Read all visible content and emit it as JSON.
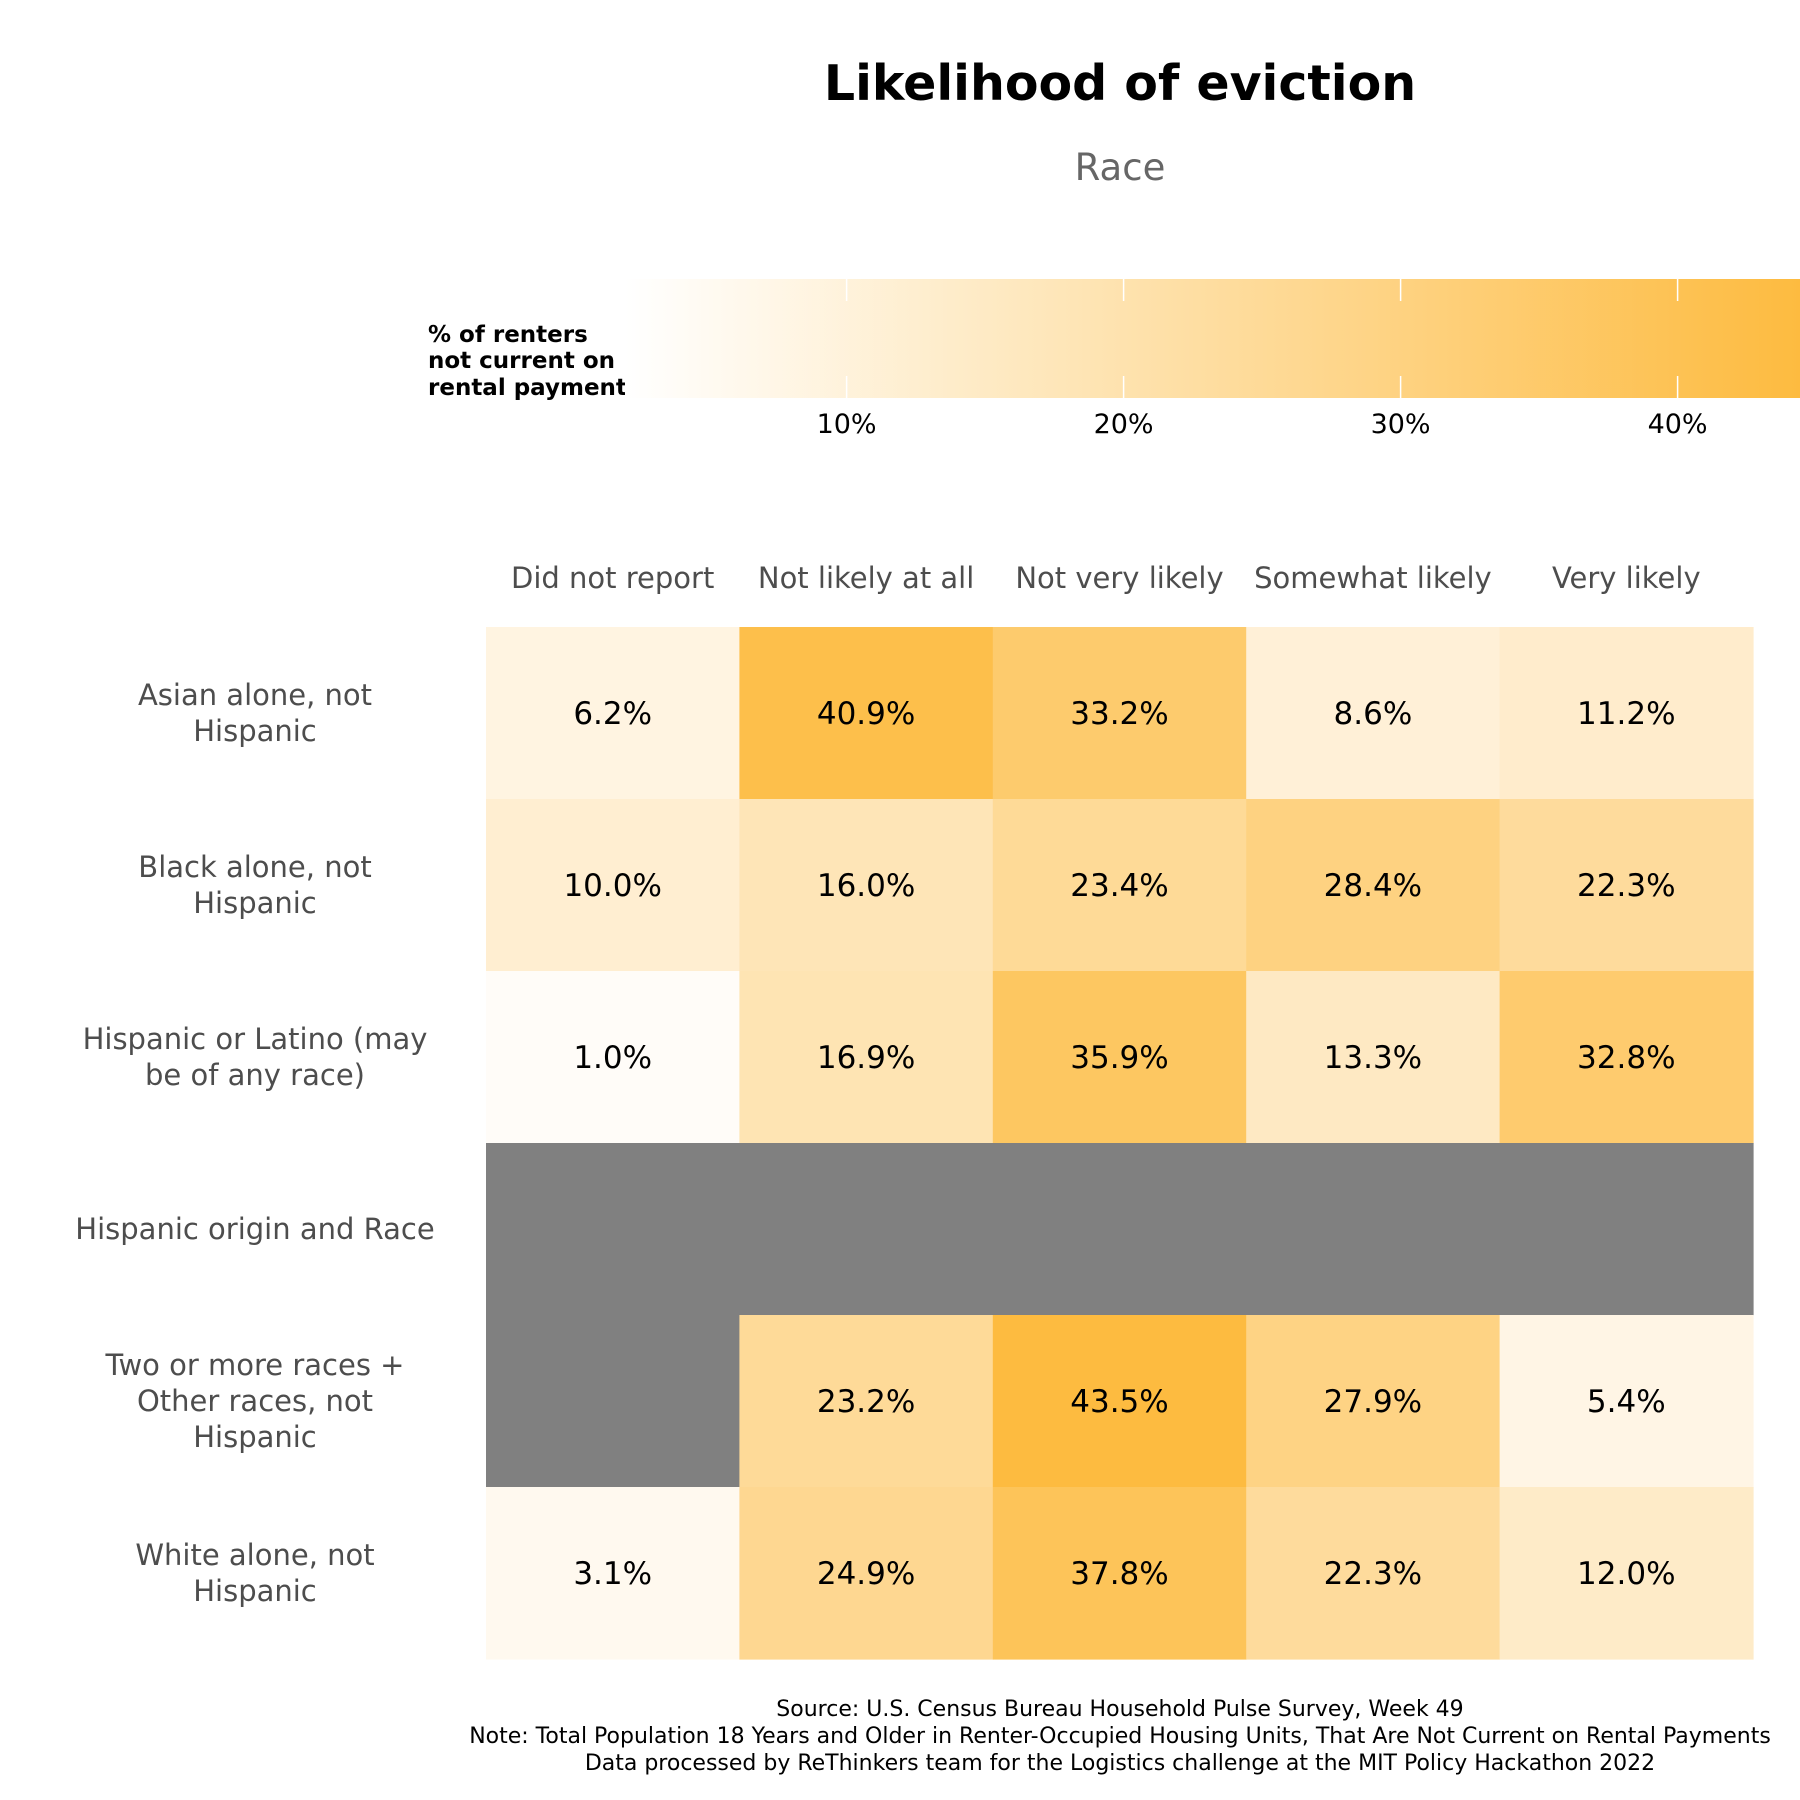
{
  "chart_data": {
    "type": "heatmap",
    "title": "Likelihood of eviction",
    "subtitle": "Race",
    "legend": {
      "title_lines": [
        "% of renters",
        "not current on",
        "rental payments"
      ],
      "ticks": [
        {
          "value": 10,
          "label": "10%"
        },
        {
          "value": 20,
          "label": "20%"
        },
        {
          "value": 30,
          "label": "30%"
        },
        {
          "value": 40,
          "label": "40%"
        }
      ],
      "range": [
        1.0,
        43.5
      ],
      "placement": "top"
    },
    "columns": [
      "Did not report",
      "Not likely at all",
      "Not very likely",
      "Somewhat likely",
      "Very likely"
    ],
    "rows": [
      {
        "label_lines": [
          "Asian alone, not",
          "Hispanic"
        ],
        "values": [
          6.2,
          40.9,
          33.2,
          8.6,
          11.2
        ],
        "labels": [
          "6.2%",
          "40.9%",
          "33.2%",
          "8.6%",
          "11.2%"
        ]
      },
      {
        "label_lines": [
          "Black alone, not",
          "Hispanic"
        ],
        "values": [
          10.0,
          16.0,
          23.4,
          28.4,
          22.3
        ],
        "labels": [
          "10.0%",
          "16.0%",
          "23.4%",
          "28.4%",
          "22.3%"
        ]
      },
      {
        "label_lines": [
          "Hispanic or Latino (may",
          "be of any race)"
        ],
        "values": [
          1.0,
          16.9,
          35.9,
          13.3,
          32.8
        ],
        "labels": [
          "1.0%",
          "16.9%",
          "35.9%",
          "13.3%",
          "32.8%"
        ]
      },
      {
        "label_lines": [
          "Hispanic origin and Race"
        ],
        "values": [
          null,
          null,
          null,
          null,
          null
        ],
        "labels": [
          "",
          "",
          "",
          "",
          ""
        ]
      },
      {
        "label_lines": [
          "Two or more races +",
          "Other races, not",
          "Hispanic"
        ],
        "values": [
          null,
          23.2,
          43.5,
          27.9,
          5.4
        ],
        "labels": [
          "",
          "23.2%",
          "43.5%",
          "27.9%",
          "5.4%"
        ]
      },
      {
        "label_lines": [
          "White alone, not",
          "Hispanic"
        ],
        "values": [
          3.1,
          24.9,
          37.8,
          22.3,
          12.0
        ],
        "labels": [
          "3.1%",
          "24.9%",
          "37.8%",
          "22.3%",
          "12.0%"
        ]
      }
    ],
    "colors": {
      "low": "#fffcf8",
      "high": "#fdbb40",
      "missing": "#808080",
      "cell_text": "#000000",
      "axis_text": "#4d4d4d"
    },
    "caption_lines": [
      "Source: U.S. Census Bureau Household Pulse Survey, Week 49",
      "Note: Total Population 18 Years and Older in Renter-Occupied Housing Units, That Are Not Current on Rental Payments",
      "Data processed by ReThinkers team for the Logistics challenge at the MIT Policy Hackathon 2022"
    ]
  }
}
